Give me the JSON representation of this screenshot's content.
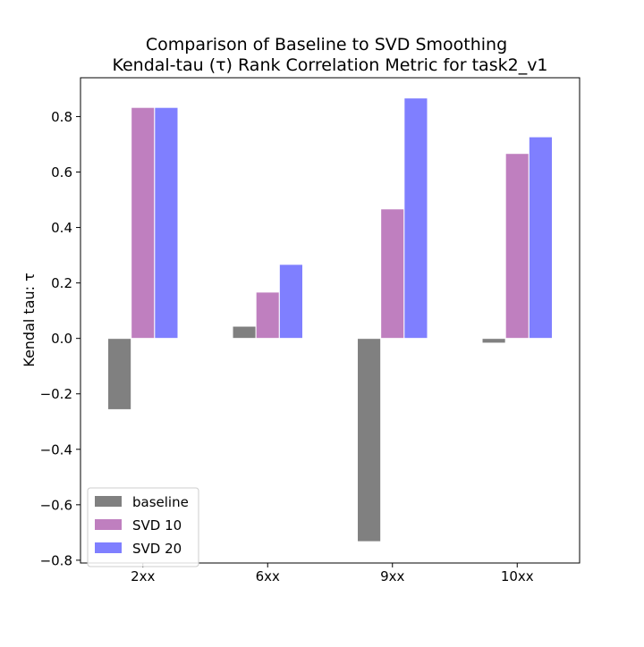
{
  "chart_data": {
    "type": "bar",
    "title_line1": "Comparison of Baseline to SVD Smoothing",
    "title_line2": "Kendal-tau (τ) Rank Correlation Metric for task2_v1",
    "xlabel": "",
    "ylabel": "Kendal tau: τ",
    "categories": [
      "2xx",
      "6xx",
      "9xx",
      "10xx"
    ],
    "series": [
      {
        "name": "baseline",
        "color": "#808080",
        "values": [
          -0.257,
          0.044,
          -0.733,
          -0.017
        ]
      },
      {
        "name": "SVD 10",
        "color": "#bf7fbf",
        "values": [
          0.833,
          0.167,
          0.467,
          0.667
        ]
      },
      {
        "name": "SVD 20",
        "color": "#7f7fff",
        "values": [
          0.833,
          0.267,
          0.867,
          0.727
        ]
      }
    ],
    "ylim": [
      -0.81,
      0.94
    ],
    "yticks": [
      -0.8,
      -0.6,
      -0.4,
      -0.2,
      0.0,
      0.2,
      0.4,
      0.6,
      0.8
    ],
    "ytick_labels": [
      "−0.8",
      "−0.6",
      "−0.4",
      "−0.2",
      "0.0",
      "0.2",
      "0.4",
      "0.6",
      "0.8"
    ],
    "grid": false,
    "legend_position": "lower-left"
  }
}
